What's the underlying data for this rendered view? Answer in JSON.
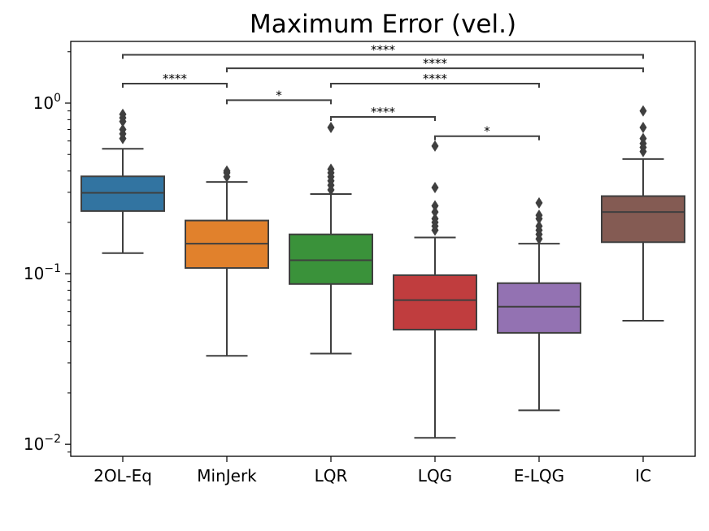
{
  "chart_data": {
    "type": "box",
    "title": "Maximum Error (vel.)",
    "xlabel": "",
    "ylabel": "",
    "yscale": "log",
    "ylim": [
      0.0085,
      2.3
    ],
    "yticks": [
      {
        "value": 0.01,
        "base": "10",
        "exp": "−2"
      },
      {
        "value": 0.1,
        "base": "10",
        "exp": "−1"
      },
      {
        "value": 1,
        "base": "10",
        "exp": "0"
      }
    ],
    "categories": [
      "2OL-Eq",
      "MinJerk",
      "LQR",
      "LQG",
      "E-LQG",
      "IC"
    ],
    "colors": [
      "#3274a1",
      "#e1812c",
      "#3a923a",
      "#c03d3e",
      "#9372b2",
      "#845b53"
    ],
    "boxes": [
      {
        "name": "2OL-Eq",
        "whisker_low": 0.132,
        "q1": 0.233,
        "median": 0.298,
        "q3": 0.372,
        "whisker_high": 0.54,
        "outliers": [
          0.62,
          0.66,
          0.7,
          0.78,
          0.82,
          0.86
        ]
      },
      {
        "name": "MinJerk",
        "whisker_low": 0.033,
        "q1": 0.108,
        "median": 0.15,
        "q3": 0.205,
        "whisker_high": 0.345,
        "outliers": [
          0.37,
          0.39,
          0.4
        ]
      },
      {
        "name": "LQR",
        "whisker_low": 0.034,
        "q1": 0.087,
        "median": 0.12,
        "q3": 0.17,
        "whisker_high": 0.293,
        "outliers": [
          0.31,
          0.33,
          0.35,
          0.37,
          0.39,
          0.41,
          0.72
        ]
      },
      {
        "name": "LQG",
        "whisker_low": 0.0109,
        "q1": 0.047,
        "median": 0.07,
        "q3": 0.098,
        "whisker_high": 0.163,
        "outliers": [
          0.18,
          0.19,
          0.2,
          0.21,
          0.23,
          0.25,
          0.32,
          0.56
        ]
      },
      {
        "name": "E-LQG",
        "whisker_low": 0.0158,
        "q1": 0.045,
        "median": 0.064,
        "q3": 0.088,
        "whisker_high": 0.15,
        "outliers": [
          0.16,
          0.17,
          0.18,
          0.19,
          0.21,
          0.22,
          0.26
        ]
      },
      {
        "name": "IC",
        "whisker_low": 0.053,
        "q1": 0.153,
        "median": 0.23,
        "q3": 0.285,
        "whisker_high": 0.47,
        "outliers": [
          0.52,
          0.55,
          0.58,
          0.62,
          0.72,
          0.9
        ]
      }
    ],
    "significance": [
      {
        "from": "2OL-Eq",
        "to": "IC",
        "label": "****",
        "level": 1.92
      },
      {
        "from": "MinJerk",
        "to": "IC",
        "label": "****",
        "level": 1.6
      },
      {
        "from": "2OL-Eq",
        "to": "MinJerk",
        "label": "****",
        "level": 1.3
      },
      {
        "from": "LQR",
        "to": "E-LQG",
        "label": "****",
        "level": 1.3
      },
      {
        "from": "MinJerk",
        "to": "LQR",
        "label": "*",
        "level": 1.04
      },
      {
        "from": "LQR",
        "to": "LQG",
        "label": "****",
        "level": 0.83
      },
      {
        "from": "LQG",
        "to": "E-LQG",
        "label": "*",
        "level": 0.64
      }
    ]
  }
}
